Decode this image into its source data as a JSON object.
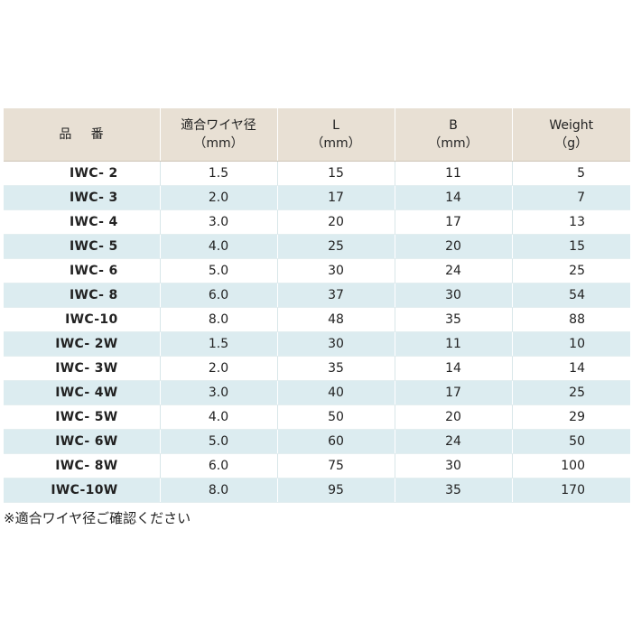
{
  "table": {
    "headers": {
      "hinban": "品 番",
      "wire_line1": "適合ワイヤ径",
      "wire_line2": "（mm）",
      "l_line1": "L",
      "l_line2": "（mm）",
      "b_line1": "B",
      "b_line2": "（mm）",
      "w_line1": "Weight",
      "w_line2": "（g）"
    },
    "rows": [
      {
        "hinban": "IWC- 2",
        "wire": "1.5",
        "l": "15",
        "b": "11",
        "weight": "5"
      },
      {
        "hinban": "IWC- 3",
        "wire": "2.0",
        "l": "17",
        "b": "14",
        "weight": "7"
      },
      {
        "hinban": "IWC- 4",
        "wire": "3.0",
        "l": "20",
        "b": "17",
        "weight": "13"
      },
      {
        "hinban": "IWC- 5",
        "wire": "4.0",
        "l": "25",
        "b": "20",
        "weight": "15"
      },
      {
        "hinban": "IWC- 6",
        "wire": "5.0",
        "l": "30",
        "b": "24",
        "weight": "25"
      },
      {
        "hinban": "IWC- 8",
        "wire": "6.0",
        "l": "37",
        "b": "30",
        "weight": "54"
      },
      {
        "hinban": "IWC-10",
        "wire": "8.0",
        "l": "48",
        "b": "35",
        "weight": "88"
      },
      {
        "hinban": "IWC- 2W",
        "wire": "1.5",
        "l": "30",
        "b": "11",
        "weight": "10"
      },
      {
        "hinban": "IWC- 3W",
        "wire": "2.0",
        "l": "35",
        "b": "14",
        "weight": "14"
      },
      {
        "hinban": "IWC- 4W",
        "wire": "3.0",
        "l": "40",
        "b": "17",
        "weight": "25"
      },
      {
        "hinban": "IWC- 5W",
        "wire": "4.0",
        "l": "50",
        "b": "20",
        "weight": "29"
      },
      {
        "hinban": "IWC- 6W",
        "wire": "5.0",
        "l": "60",
        "b": "24",
        "weight": "50"
      },
      {
        "hinban": "IWC- 8W",
        "wire": "6.0",
        "l": "75",
        "b": "30",
        "weight": "100"
      },
      {
        "hinban": "IWC-10W",
        "wire": "8.0",
        "l": "95",
        "b": "35",
        "weight": "170"
      }
    ]
  },
  "note": "※適合ワイヤ径ご確認ください",
  "colors": {
    "header_bg": "#e8e0d4",
    "stripe_bg": "#dcecf0",
    "row_bg": "#ffffff"
  }
}
